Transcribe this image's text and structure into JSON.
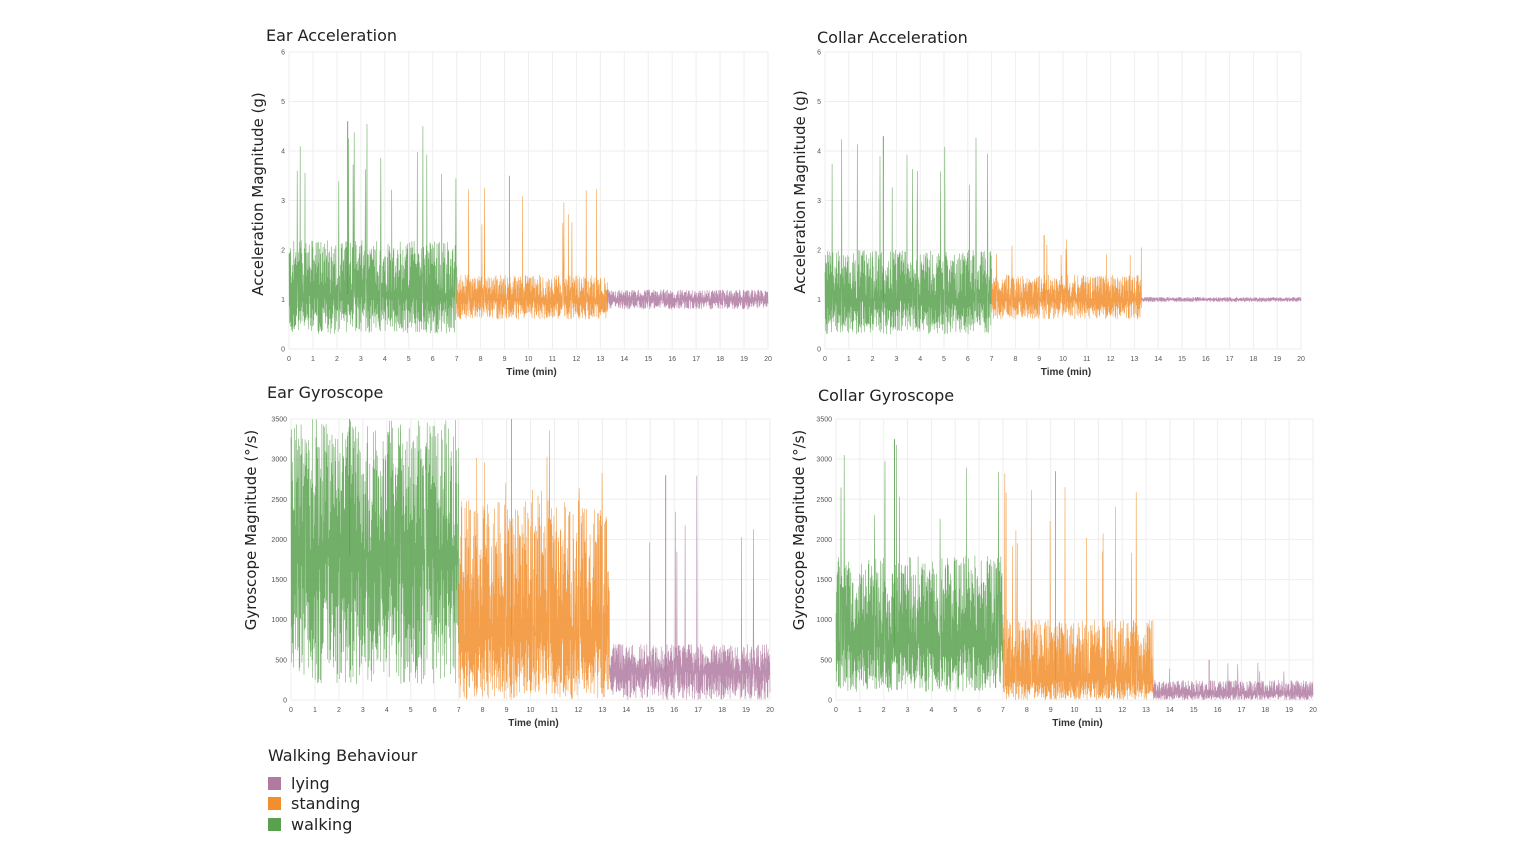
{
  "colors": {
    "lying": "#b07aa1",
    "standing": "#f28e2b",
    "walking": "#59a14f"
  },
  "legend": {
    "title": "Walking Behaviour",
    "items": [
      {
        "label": "lying",
        "color": "#b07aa1"
      },
      {
        "label": "standing",
        "color": "#f28e2b"
      },
      {
        "label": "walking",
        "color": "#59a14f"
      }
    ]
  },
  "chart_data": [
    {
      "type": "line",
      "title": "Ear Acceleration",
      "xlabel": "Time (min)",
      "ylabel": "Acceleration Magnitude (g)",
      "xlim": [
        0,
        20
      ],
      "ylim": [
        0,
        6
      ],
      "xticks": [
        0,
        1,
        2,
        3,
        4,
        5,
        6,
        7,
        8,
        9,
        10,
        11,
        12,
        13,
        14,
        15,
        16,
        17,
        18,
        19,
        20
      ],
      "yticks": [
        0,
        1,
        2,
        3,
        4,
        5,
        6
      ],
      "grid": true,
      "series": [
        {
          "name": "walking",
          "x_range": [
            0,
            7
          ],
          "baseline": 1.1,
          "typical_range": [
            0.3,
            2.2
          ],
          "peak": 4.6
        },
        {
          "name": "standing",
          "x_range": [
            7,
            13.3
          ],
          "baseline": 1.0,
          "typical_range": [
            0.6,
            1.5
          ],
          "peak": 3.5
        },
        {
          "name": "lying",
          "x_range": [
            13.3,
            20
          ],
          "baseline": 1.0,
          "typical_range": [
            0.8,
            1.2
          ],
          "peak": 1.2
        }
      ]
    },
    {
      "type": "line",
      "title": "Collar Acceleration",
      "xlabel": "Time (min)",
      "ylabel": "Acceleration Magnitude (g)",
      "xlim": [
        0,
        20
      ],
      "ylim": [
        0,
        6
      ],
      "xticks": [
        0,
        1,
        2,
        3,
        4,
        5,
        6,
        7,
        8,
        9,
        10,
        11,
        12,
        13,
        14,
        15,
        16,
        17,
        18,
        19,
        20
      ],
      "yticks": [
        0,
        1,
        2,
        3,
        4,
        5,
        6
      ],
      "grid": true,
      "series": [
        {
          "name": "walking",
          "x_range": [
            0,
            7
          ],
          "baseline": 1.0,
          "typical_range": [
            0.3,
            2.0
          ],
          "peak": 4.3
        },
        {
          "name": "standing",
          "x_range": [
            7,
            13.3
          ],
          "baseline": 1.0,
          "typical_range": [
            0.6,
            1.5
          ],
          "peak": 2.3
        },
        {
          "name": "lying",
          "x_range": [
            13.3,
            20
          ],
          "baseline": 1.0,
          "typical_range": [
            0.95,
            1.05
          ],
          "peak": 1.05
        }
      ]
    },
    {
      "type": "line",
      "title": "Ear Gyroscope",
      "xlabel": "Time (min)",
      "ylabel": "Gyroscope Magnitude (°/s)",
      "xlim": [
        0,
        20
      ],
      "ylim": [
        0,
        3500
      ],
      "xticks": [
        0,
        1,
        2,
        3,
        4,
        5,
        6,
        7,
        8,
        9,
        10,
        11,
        12,
        13,
        14,
        15,
        16,
        17,
        18,
        19,
        20
      ],
      "yticks": [
        0,
        500,
        1000,
        1500,
        2000,
        2500,
        3000,
        3500
      ],
      "grid": true,
      "series": [
        {
          "name": "walking",
          "x_range": [
            0,
            7
          ],
          "baseline": 1800,
          "typical_range": [
            200,
            3500
          ],
          "peak": 3500
        },
        {
          "name": "standing",
          "x_range": [
            7,
            13.3
          ],
          "baseline": 800,
          "typical_range": [
            0,
            2500
          ],
          "peak": 3500
        },
        {
          "name": "lying",
          "x_range": [
            13.3,
            20
          ],
          "baseline": 350,
          "typical_range": [
            0,
            700
          ],
          "peak": 2800
        }
      ]
    },
    {
      "type": "line",
      "title": "Collar Gyroscope",
      "xlabel": "Time (min)",
      "ylabel": "Gyroscope Magnitude (°/s)",
      "xlim": [
        0,
        20
      ],
      "ylim": [
        0,
        3500
      ],
      "xticks": [
        0,
        1,
        2,
        3,
        4,
        5,
        6,
        7,
        8,
        9,
        10,
        11,
        12,
        13,
        14,
        15,
        16,
        17,
        18,
        19,
        20
      ],
      "yticks": [
        0,
        500,
        1000,
        1500,
        2000,
        2500,
        3000,
        3500
      ],
      "grid": true,
      "series": [
        {
          "name": "walking",
          "x_range": [
            0,
            7
          ],
          "baseline": 700,
          "typical_range": [
            100,
            1800
          ],
          "peak": 3250
        },
        {
          "name": "standing",
          "x_range": [
            7,
            13.3
          ],
          "baseline": 250,
          "typical_range": [
            0,
            1000
          ],
          "peak": 2850
        },
        {
          "name": "lying",
          "x_range": [
            13.3,
            20
          ],
          "baseline": 80,
          "typical_range": [
            0,
            250
          ],
          "peak": 500
        }
      ]
    }
  ]
}
